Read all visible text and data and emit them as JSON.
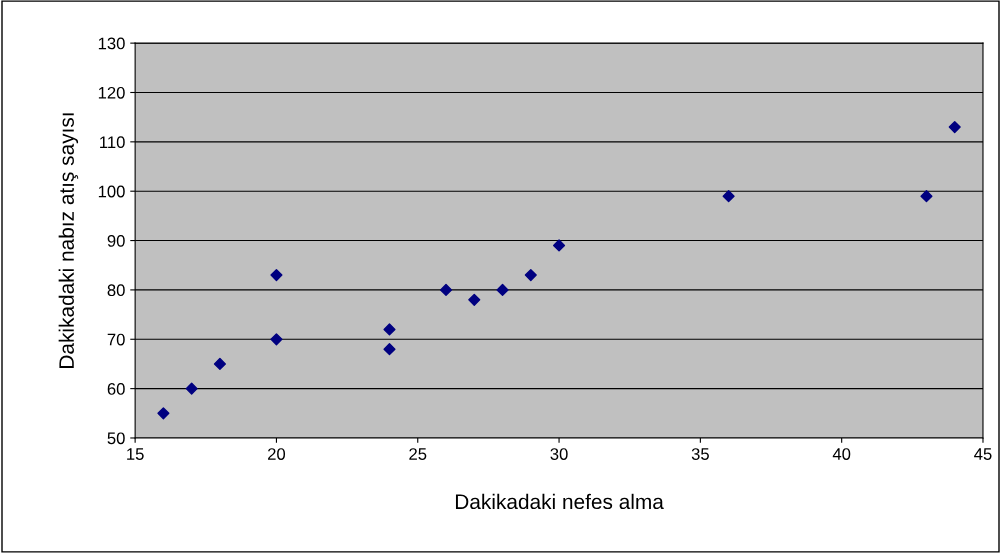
{
  "chart_data": {
    "type": "scatter",
    "xlabel": "Dakikadaki nefes alma",
    "ylabel": "Dakikadaki nabız atış sayısı",
    "x": [
      16,
      17,
      18,
      20,
      20,
      24,
      24,
      26,
      27,
      28,
      29,
      30,
      36,
      43,
      44
    ],
    "series": [
      {
        "color": "#000080",
        "values": [
          55,
          60,
          65,
          70,
          83,
          72,
          68,
          80,
          78,
          80,
          83,
          89,
          99,
          99,
          113
        ]
      }
    ],
    "xlim": [
      15,
      45
    ],
    "xticks": [
      15,
      20,
      25,
      30,
      35,
      40,
      45
    ],
    "ylim": [
      50,
      130
    ],
    "yticks": [
      50,
      60,
      70,
      80,
      90,
      100,
      110,
      120,
      130
    ],
    "grid": "y",
    "marker": "diamond",
    "legend": false
  }
}
